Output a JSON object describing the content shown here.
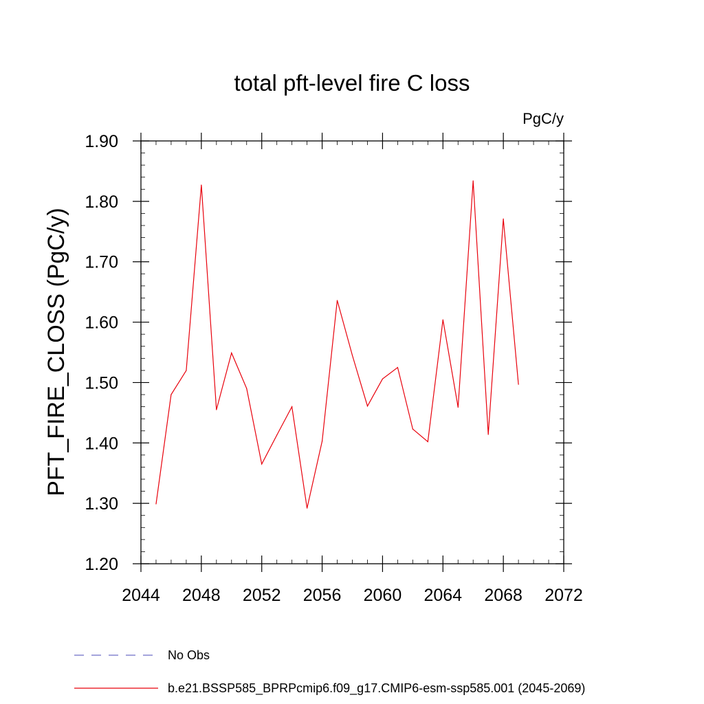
{
  "chart_data": {
    "type": "line",
    "title": "total pft-level fire C loss",
    "units_label": "PgC/y",
    "ylabel": "PFT_FIRE_CLOSS  (PgC/y)",
    "xlabel": "",
    "xlim": [
      2044,
      2072
    ],
    "ylim": [
      1.2,
      1.9
    ],
    "x_ticks": [
      2044,
      2048,
      2052,
      2056,
      2060,
      2064,
      2068,
      2072
    ],
    "x_tick_labels": [
      "2044",
      "2048",
      "2052",
      "2056",
      "2060",
      "2064",
      "2068",
      "2072"
    ],
    "y_ticks": [
      1.2,
      1.3,
      1.4,
      1.5,
      1.6,
      1.7,
      1.8,
      1.9
    ],
    "y_tick_labels": [
      "1.20",
      "1.30",
      "1.40",
      "1.50",
      "1.60",
      "1.70",
      "1.80",
      "1.90"
    ],
    "grid": false,
    "legend_position": "bottom",
    "x": [
      2045,
      2046,
      2047,
      2048,
      2049,
      2050,
      2051,
      2052,
      2053,
      2054,
      2055,
      2056,
      2057,
      2058,
      2059,
      2060,
      2061,
      2062,
      2063,
      2064,
      2065,
      2066,
      2067,
      2068,
      2069
    ],
    "series": [
      {
        "name": "b.e21.BSSP585_BPRPcmip6.f09_g17.CMIP6-esm-ssp585.001 (2045-2069)",
        "color": "#e8000b",
        "style": "solid",
        "values": [
          1.299,
          1.48,
          1.52,
          1.827,
          1.455,
          1.549,
          1.49,
          1.365,
          1.413,
          1.46,
          1.292,
          1.403,
          1.636,
          1.545,
          1.461,
          1.506,
          1.525,
          1.423,
          1.402,
          1.604,
          1.459,
          1.834,
          1.414,
          1.771,
          1.497
        ]
      }
    ],
    "legend": [
      {
        "label": "No Obs",
        "color": "#6e6ec8",
        "style": "dashed"
      },
      {
        "label": "b.e21.BSSP585_BPRPcmip6.f09_g17.CMIP6-esm-ssp585.001 (2045-2069)",
        "color": "#e8000b",
        "style": "solid"
      }
    ]
  }
}
